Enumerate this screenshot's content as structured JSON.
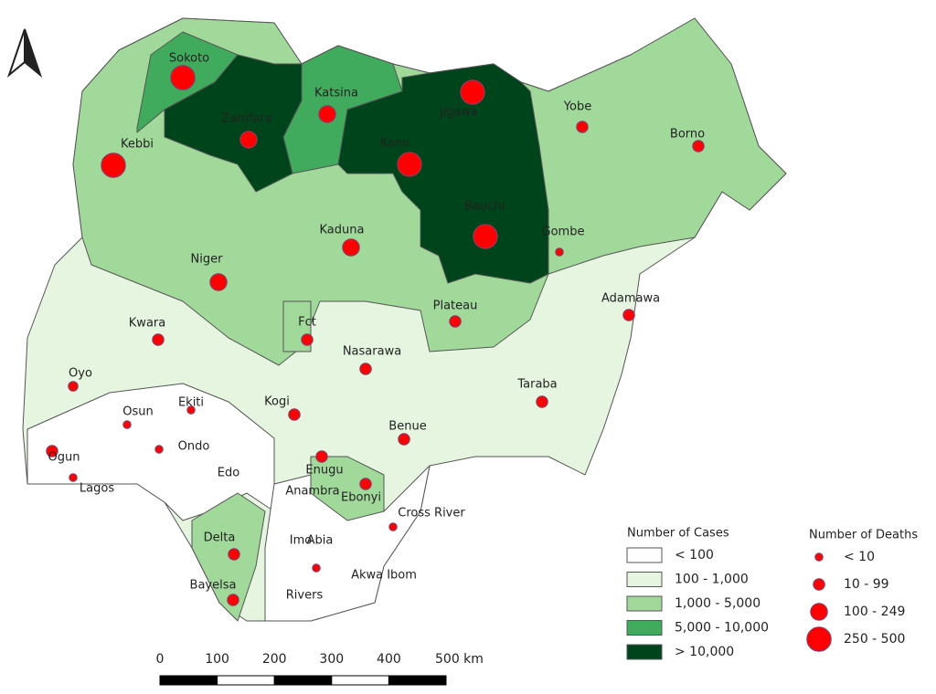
{
  "states": [
    "Sokoto",
    "Zamfara",
    "Katsina",
    "Jigawa",
    "Yobe",
    "Borno",
    "Kebbi",
    "Kano",
    "Kaduna",
    "Bauchi",
    "Gombe",
    "Niger",
    "Adamawa",
    "Plateau",
    "Kwara",
    "Fct",
    "Nasarawa",
    "Oyo",
    "Taraba",
    "Ekiti",
    "Kogi",
    "Osun",
    "Benue",
    "Ondo",
    "Ogun",
    "Edo",
    "Enugu",
    "Lagos",
    "Anambra",
    "Ebonyi",
    "Cross River",
    "Delta",
    "Imo",
    "Abia",
    "Akwa Ibom",
    "Bayelsa",
    "Rivers"
  ],
  "legend_cases": {
    "title": "Number of Cases",
    "items": [
      "< 100",
      "100 - 1,000",
      "1,000 - 5,000",
      "5,000 - 10,000",
      "> 10,000"
    ]
  },
  "legend_deaths": {
    "title": "Number of Deaths",
    "items": [
      "< 10",
      "10 - 99",
      "100 - 249",
      "250 - 500"
    ]
  },
  "scale_bar": {
    "labels": [
      "0",
      "100",
      "200",
      "300",
      "400",
      "500 km"
    ]
  }
}
